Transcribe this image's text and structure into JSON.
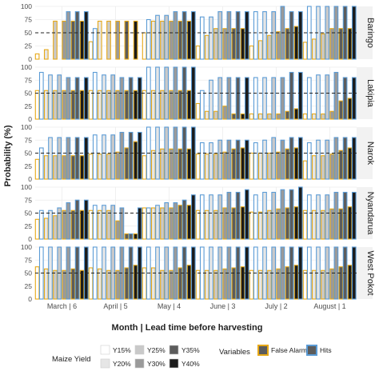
{
  "chart_data": {
    "type": "bar",
    "ylabel": "Probability (%)",
    "xlabel": "Month | Lead time before harvesting",
    "ylim": [
      0,
      100
    ],
    "yticks": [
      0,
      25,
      50,
      75,
      100
    ],
    "threshold": 50,
    "categories": [
      "March | 6",
      "April | 5",
      "May | 4",
      "June | 3",
      "July | 2",
      "August | 1"
    ],
    "yield_levels": [
      "Y15%",
      "Y20%",
      "Y25%",
      "Y30%",
      "Y35%",
      "Y40%"
    ],
    "yield_fills": [
      "#ffffff",
      "#e6e6e6",
      "#c9c9c9",
      "#9a9a9a",
      "#5c5c5c",
      "#1b1b1b"
    ],
    "variable_colors": {
      "False Alarms": "#e6a817",
      "Hits": "#5b9bd5"
    },
    "legend": {
      "maize_title": "Maize Yield",
      "variables_title": "Variables",
      "maize_entries": [
        "Y15%",
        "Y20%",
        "Y25%",
        "Y30%",
        "Y35%",
        "Y40%"
      ],
      "variable_entries": [
        "False Alarms",
        "Hits"
      ]
    },
    "panels": [
      {
        "region": "Baringo",
        "false_alarms": [
          [
            10,
            18,
            72,
            72,
            72,
            72
          ],
          [
            33,
            72,
            72,
            72,
            72,
            72
          ],
          [
            50,
            72,
            72,
            72,
            72,
            72
          ],
          [
            25,
            45,
            58,
            58,
            58,
            58
          ],
          [
            25,
            35,
            45,
            52,
            58,
            62
          ],
          [
            32,
            38,
            48,
            58,
            58,
            58
          ]
        ],
        "hits": [
          [
            0,
            0,
            0,
            90,
            90,
            90
          ],
          [
            58,
            0,
            0,
            0,
            0,
            0
          ],
          [
            75,
            83,
            83,
            90,
            90,
            90
          ],
          [
            80,
            80,
            90,
            90,
            90,
            90
          ],
          [
            90,
            90,
            90,
            100,
            90,
            90
          ],
          [
            100,
            100,
            100,
            100,
            100,
            100
          ]
        ]
      },
      {
        "region": "Lakipia",
        "false_alarms": [
          [
            55,
            55,
            55,
            55,
            55,
            55
          ],
          [
            55,
            55,
            55,
            55,
            55,
            55
          ],
          [
            55,
            55,
            55,
            55,
            55,
            55
          ],
          [
            30,
            15,
            15,
            25,
            10,
            10
          ],
          [
            10,
            10,
            10,
            10,
            15,
            20
          ],
          [
            10,
            10,
            10,
            15,
            35,
            40
          ]
        ],
        "hits": [
          [
            90,
            85,
            85,
            80,
            80,
            80
          ],
          [
            90,
            85,
            85,
            80,
            80,
            80
          ],
          [
            100,
            100,
            100,
            100,
            100,
            100
          ],
          [
            55,
            75,
            80,
            80,
            80,
            80
          ],
          [
            80,
            80,
            80,
            80,
            90,
            90
          ],
          [
            80,
            85,
            85,
            90,
            80,
            80
          ]
        ]
      },
      {
        "region": "Narok",
        "false_alarms": [
          [
            38,
            45,
            45,
            45,
            45,
            45
          ],
          [
            48,
            48,
            48,
            52,
            60,
            72
          ],
          [
            45,
            55,
            58,
            58,
            58,
            58
          ],
          [
            48,
            48,
            48,
            52,
            58,
            60
          ],
          [
            50,
            50,
            50,
            52,
            58,
            60
          ],
          [
            35,
            45,
            45,
            48,
            55,
            60
          ]
        ],
        "hits": [
          [
            60,
            80,
            80,
            80,
            80,
            80
          ],
          [
            85,
            85,
            85,
            90,
            90,
            90
          ],
          [
            100,
            100,
            100,
            100,
            100,
            100
          ],
          [
            70,
            70,
            75,
            75,
            75,
            75
          ],
          [
            70,
            75,
            80,
            75,
            80,
            80
          ],
          [
            70,
            75,
            75,
            80,
            80,
            80
          ]
        ]
      },
      {
        "region": "Nyandarua",
        "false_alarms": [
          [
            38,
            40,
            45,
            55,
            55,
            55
          ],
          [
            55,
            55,
            55,
            35,
            10,
            10
          ],
          [
            60,
            60,
            60,
            60,
            65,
            65
          ],
          [
            55,
            55,
            55,
            60,
            60,
            62
          ],
          [
            52,
            52,
            55,
            58,
            60,
            62
          ],
          [
            55,
            55,
            55,
            58,
            58,
            62
          ]
        ],
        "hits": [
          [
            55,
            55,
            60,
            70,
            75,
            75
          ],
          [
            65,
            65,
            65,
            60,
            10,
            60
          ],
          [
            60,
            65,
            70,
            70,
            75,
            85
          ],
          [
            85,
            85,
            85,
            90,
            90,
            95
          ],
          [
            85,
            90,
            90,
            95,
            95,
            100
          ],
          [
            85,
            85,
            85,
            90,
            90,
            90
          ]
        ]
      },
      {
        "region": "West Pokot",
        "false_alarms": [
          [
            62,
            58,
            55,
            55,
            58,
            55
          ],
          [
            60,
            58,
            55,
            55,
            60,
            65
          ],
          [
            60,
            60,
            55,
            55,
            60,
            65
          ],
          [
            55,
            55,
            55,
            58,
            60,
            62
          ],
          [
            55,
            55,
            55,
            58,
            62,
            65
          ],
          [
            55,
            55,
            55,
            58,
            62,
            65
          ]
        ],
        "hits": [
          [
            100,
            100,
            100,
            100,
            100,
            100
          ],
          [
            100,
            100,
            100,
            100,
            100,
            100
          ],
          [
            100,
            100,
            100,
            100,
            100,
            100
          ],
          [
            100,
            100,
            100,
            100,
            100,
            100
          ],
          [
            100,
            100,
            100,
            100,
            100,
            100
          ],
          [
            100,
            100,
            100,
            100,
            100,
            100
          ]
        ]
      }
    ]
  }
}
